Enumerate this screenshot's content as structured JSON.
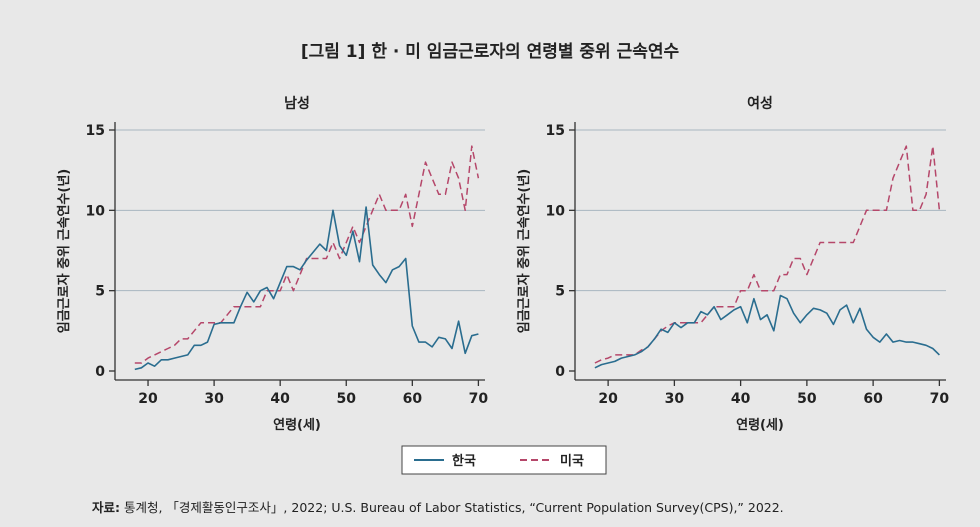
{
  "figure_title": "[그림 1] 한 · 미 임금근로자의 연령별 중위 근속연수",
  "source_label": "자료:",
  "source_text": "통계청, 「경제활동인구조사」, 2022; U.S. Bureau of Labor Statistics, “Current Population Survey(CPS),” 2022.",
  "colors": {
    "korea": "#2a6d8f",
    "us": "#b5476a",
    "grid": "#a9b6c0",
    "axis": "#333333"
  },
  "legend": [
    {
      "name": "한국",
      "style": "solid",
      "color": "#2a6d8f"
    },
    {
      "name": "미국",
      "style": "dashed",
      "color": "#b5476a"
    }
  ],
  "chart_data": [
    {
      "type": "line",
      "title": "남성",
      "xlabel": "연령(세)",
      "ylabel": "임금근로자 중위 근속연수(년)",
      "xlim": [
        15,
        71
      ],
      "ylim": [
        0,
        15
      ],
      "xticks": [
        20,
        30,
        40,
        50,
        60,
        70
      ],
      "yticks": [
        0,
        5,
        10,
        15
      ],
      "series": [
        {
          "name": "한국",
          "x": [
            18,
            19,
            20,
            21,
            22,
            23,
            24,
            25,
            26,
            27,
            28,
            29,
            30,
            31,
            32,
            33,
            34,
            35,
            36,
            37,
            38,
            39,
            40,
            41,
            42,
            43,
            44,
            45,
            46,
            47,
            48,
            49,
            50,
            51,
            52,
            53,
            54,
            55,
            56,
            57,
            58,
            59,
            60,
            61,
            62,
            63,
            64,
            65,
            66,
            67,
            68,
            69,
            70
          ],
          "values": [
            0.1,
            0.2,
            0.5,
            0.3,
            0.7,
            0.7,
            0.8,
            0.9,
            1.0,
            1.6,
            1.6,
            1.8,
            2.9,
            3.0,
            3.0,
            3.0,
            4.0,
            4.9,
            4.3,
            5.0,
            5.2,
            4.5,
            5.5,
            6.5,
            6.5,
            6.3,
            6.9,
            7.4,
            7.9,
            7.5,
            10.0,
            7.8,
            7.2,
            8.7,
            6.8,
            10.2,
            6.6,
            6.0,
            5.5,
            6.3,
            6.5,
            7.0,
            2.8,
            1.8,
            1.8,
            1.5,
            2.1,
            2.0,
            1.4,
            3.1,
            1.1,
            2.2,
            2.3
          ]
        },
        {
          "name": "미국",
          "x": [
            18,
            19,
            20,
            21,
            22,
            23,
            24,
            25,
            26,
            27,
            28,
            29,
            30,
            31,
            32,
            33,
            34,
            35,
            36,
            37,
            38,
            39,
            40,
            41,
            42,
            43,
            44,
            45,
            46,
            47,
            48,
            49,
            50,
            51,
            52,
            53,
            54,
            55,
            56,
            57,
            58,
            59,
            60,
            61,
            62,
            63,
            64,
            65,
            66,
            67,
            68,
            69,
            70
          ],
          "values": [
            0.5,
            0.5,
            0.8,
            1.0,
            1.2,
            1.4,
            1.6,
            2.0,
            2.0,
            2.5,
            3.0,
            3.0,
            3.0,
            3.0,
            3.5,
            4.0,
            4.0,
            4.0,
            4.0,
            4.0,
            5.0,
            5.0,
            5.0,
            6.0,
            5.0,
            6.0,
            7.0,
            7.0,
            7.0,
            7.0,
            8.0,
            7.0,
            8.0,
            9.0,
            8.0,
            9.0,
            10.0,
            11.0,
            10.0,
            10.0,
            10.0,
            11.0,
            9.0,
            11.0,
            13.0,
            12.0,
            11.0,
            11.0,
            13.0,
            12.0,
            10.0,
            14.0,
            12.0
          ]
        }
      ]
    },
    {
      "type": "line",
      "title": "여성",
      "xlabel": "연령(세)",
      "ylabel": "임금근로자 중위 근속연수(년)",
      "xlim": [
        15,
        71
      ],
      "ylim": [
        0,
        15
      ],
      "xticks": [
        20,
        30,
        40,
        50,
        60,
        70
      ],
      "yticks": [
        0,
        5,
        10,
        15
      ],
      "series": [
        {
          "name": "한국",
          "x": [
            18,
            19,
            20,
            21,
            22,
            23,
            24,
            25,
            26,
            27,
            28,
            29,
            30,
            31,
            32,
            33,
            34,
            35,
            36,
            37,
            38,
            39,
            40,
            41,
            42,
            43,
            44,
            45,
            46,
            47,
            48,
            49,
            50,
            51,
            52,
            53,
            54,
            55,
            56,
            57,
            58,
            59,
            60,
            61,
            62,
            63,
            64,
            65,
            66,
            67,
            68,
            69,
            70
          ],
          "values": [
            0.2,
            0.4,
            0.5,
            0.6,
            0.8,
            0.9,
            1.0,
            1.2,
            1.5,
            2.0,
            2.6,
            2.4,
            3.0,
            2.7,
            3.0,
            3.0,
            3.7,
            3.5,
            4.0,
            3.2,
            3.5,
            3.8,
            4.0,
            3.0,
            4.5,
            3.2,
            3.5,
            2.5,
            4.7,
            4.5,
            3.6,
            3.0,
            3.5,
            3.9,
            3.8,
            3.6,
            2.9,
            3.8,
            4.1,
            3.0,
            3.9,
            2.6,
            2.1,
            1.8,
            2.3,
            1.8,
            1.9,
            1.8,
            1.8,
            1.7,
            1.6,
            1.4,
            1.0
          ]
        },
        {
          "name": "미국",
          "x": [
            18,
            19,
            20,
            21,
            22,
            23,
            24,
            25,
            26,
            27,
            28,
            29,
            30,
            31,
            32,
            33,
            34,
            35,
            36,
            37,
            38,
            39,
            40,
            41,
            42,
            43,
            44,
            45,
            46,
            47,
            48,
            49,
            50,
            51,
            52,
            53,
            54,
            55,
            56,
            57,
            58,
            59,
            60,
            61,
            62,
            63,
            64,
            65,
            66,
            67,
            68,
            69,
            70
          ],
          "values": [
            0.5,
            0.7,
            0.8,
            1.0,
            1.0,
            1.0,
            1.0,
            1.3,
            1.5,
            2.0,
            2.5,
            2.8,
            3.0,
            3.0,
            3.0,
            3.0,
            3.0,
            3.5,
            4.0,
            4.0,
            4.0,
            4.0,
            5.0,
            5.0,
            6.0,
            5.0,
            5.0,
            5.0,
            6.0,
            6.0,
            7.0,
            7.0,
            6.0,
            7.0,
            8.0,
            8.0,
            8.0,
            8.0,
            8.0,
            8.0,
            9.0,
            10.0,
            10.0,
            10.0,
            10.0,
            12.0,
            13.0,
            14.0,
            10.0,
            10.0,
            11.0,
            14.0,
            10.0
          ]
        }
      ]
    }
  ]
}
